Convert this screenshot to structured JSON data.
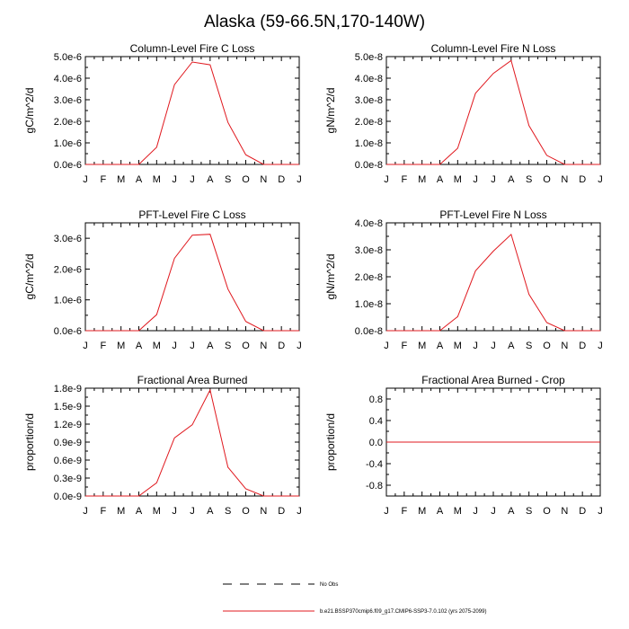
{
  "main_title": "Alaska (59-66.5N,170-140W)",
  "month_labels": [
    "J",
    "F",
    "M",
    "A",
    "M",
    "J",
    "J",
    "A",
    "S",
    "O",
    "N",
    "D",
    "J"
  ],
  "series_color": "#e0191f",
  "legend": {
    "obs_label": "No Obs",
    "model_label": "b.e21.BSSP370cmip6.f09_g17.CMIP6-SSP3-7.0.102 (yrs 2075-2099)"
  },
  "chart_data": [
    {
      "type": "line",
      "title": "Column-Level Fire C Loss",
      "ylabel": "gC/m^2/d",
      "ylim": [
        0,
        5e-06
      ],
      "yticks": [
        0,
        1e-06,
        2e-06,
        3e-06,
        4e-06,
        5e-06
      ],
      "ytick_labels": [
        "0.0e-6",
        "1.0e-6",
        "2.0e-6",
        "3.0e-6",
        "4.0e-6",
        "5.0e-6"
      ],
      "x": [
        "Jan",
        "Feb",
        "Mar",
        "Apr",
        "May",
        "Jun",
        "Jul",
        "Aug",
        "Sep",
        "Oct",
        "Nov",
        "Dec"
      ],
      "values": [
        0,
        0,
        0,
        0,
        8e-07,
        3.7e-06,
        4.75e-06,
        4.62e-06,
        1.95e-06,
        4.5e-07,
        0,
        0
      ]
    },
    {
      "type": "line",
      "title": "Column-Level Fire N Loss",
      "ylabel": "gN/m^2/d",
      "ylim": [
        0,
        5e-08
      ],
      "yticks": [
        0,
        1e-08,
        2e-08,
        3e-08,
        4e-08,
        5e-08
      ],
      "ytick_labels": [
        "0.0e-8",
        "1.0e-8",
        "2.0e-8",
        "3.0e-8",
        "4.0e-8",
        "5.0e-8"
      ],
      "x": [
        "Jan",
        "Feb",
        "Mar",
        "Apr",
        "May",
        "Jun",
        "Jul",
        "Aug",
        "Sep",
        "Oct",
        "Nov",
        "Dec"
      ],
      "values": [
        0,
        0,
        0,
        0,
        7.5e-09,
        3.3e-08,
        4.22e-08,
        4.82e-08,
        1.8e-08,
        4.2e-09,
        0,
        0
      ]
    },
    {
      "type": "line",
      "title": "PFT-Level Fire C Loss",
      "ylabel": "gC/m^2/d",
      "ylim": [
        0,
        3.5e-06
      ],
      "yticks": [
        0,
        1e-06,
        2e-06,
        3e-06
      ],
      "ytick_labels": [
        "0.0e-6",
        "1.0e-6",
        "2.0e-6",
        "3.0e-6"
      ],
      "x": [
        "Jan",
        "Feb",
        "Mar",
        "Apr",
        "May",
        "Jun",
        "Jul",
        "Aug",
        "Sep",
        "Oct",
        "Nov",
        "Dec"
      ],
      "values": [
        0,
        0,
        0,
        0,
        5.2e-07,
        2.35e-06,
        3.1e-06,
        3.13e-06,
        1.35e-06,
        3e-07,
        0,
        0
      ]
    },
    {
      "type": "line",
      "title": "PFT-Level Fire N Loss",
      "ylabel": "gN/m^2/d",
      "ylim": [
        0,
        4e-08
      ],
      "yticks": [
        0,
        1e-08,
        2e-08,
        3e-08,
        4e-08
      ],
      "ytick_labels": [
        "0.0e-8",
        "1.0e-8",
        "2.0e-8",
        "3.0e-8",
        "4.0e-8"
      ],
      "x": [
        "Jan",
        "Feb",
        "Mar",
        "Apr",
        "May",
        "Jun",
        "Jul",
        "Aug",
        "Sep",
        "Oct",
        "Nov",
        "Dec"
      ],
      "values": [
        0,
        0,
        0,
        0,
        5.2e-09,
        2.22e-08,
        2.95e-08,
        3.57e-08,
        1.35e-08,
        3e-09,
        0,
        0
      ]
    },
    {
      "type": "line",
      "title": "Fractional Area Burned",
      "ylabel": "proportion/d",
      "ylim": [
        0,
        1.8e-09
      ],
      "yticks": [
        0,
        3e-10,
        6e-10,
        9e-10,
        1.2e-09,
        1.5e-09,
        1.8e-09
      ],
      "ytick_labels": [
        "0.0e-9",
        "0.3e-9",
        "0.6e-9",
        "0.9e-9",
        "1.2e-9",
        "1.5e-9",
        "1.8e-9"
      ],
      "x": [
        "Jan",
        "Feb",
        "Mar",
        "Apr",
        "May",
        "Jun",
        "Jul",
        "Aug",
        "Sep",
        "Oct",
        "Nov",
        "Dec"
      ],
      "values": [
        0,
        0,
        0,
        0,
        2.2e-10,
        9.7e-10,
        1.19e-09,
        1.77e-09,
        4.8e-10,
        1.2e-10,
        0,
        0
      ]
    },
    {
      "type": "line",
      "title": "Fractional Area Burned - Crop",
      "ylabel": "proportion/d",
      "ylim": [
        -1.0,
        1.0
      ],
      "yticks": [
        -0.8,
        -0.4,
        0,
        0.4,
        0.8
      ],
      "ytick_labels": [
        "-0.8",
        "-0.4",
        "0.0",
        "0.4",
        "0.8"
      ],
      "x": [
        "Jan",
        "Feb",
        "Mar",
        "Apr",
        "May",
        "Jun",
        "Jul",
        "Aug",
        "Sep",
        "Oct",
        "Nov",
        "Dec"
      ],
      "values": [
        0,
        0,
        0,
        0,
        0,
        0,
        0,
        0,
        0,
        0,
        0,
        0
      ]
    }
  ]
}
